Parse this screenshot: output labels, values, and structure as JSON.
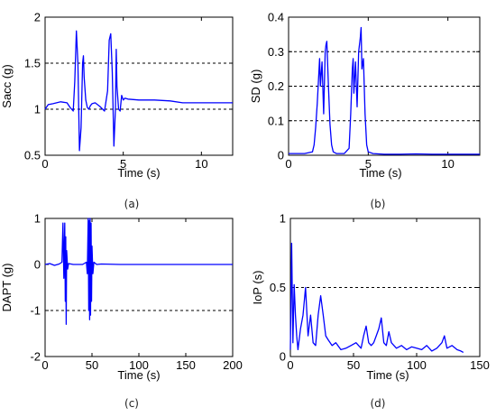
{
  "chart_data": [
    {
      "type": "line",
      "xlabel": "Time (s)",
      "ylabel": "Sacc (g)",
      "caption": "(a)",
      "xlim": [
        0,
        12
      ],
      "ylim": [
        0.5,
        2
      ],
      "xticks": [
        0,
        5,
        10
      ],
      "yticks": [
        0.5,
        1,
        1.5,
        2
      ],
      "reference_lines": [
        1,
        1.5
      ],
      "color": "#0000ff",
      "grid": false,
      "x": [
        0,
        0.2,
        0.5,
        1.0,
        1.4,
        1.6,
        1.8,
        1.9,
        2.0,
        2.1,
        2.2,
        2.3,
        2.4,
        2.45,
        2.5,
        2.6,
        2.7,
        2.8,
        2.9,
        3.0,
        3.2,
        3.5,
        3.8,
        4.0,
        4.1,
        4.2,
        4.3,
        4.4,
        4.5,
        4.55,
        4.6,
        4.7,
        4.8,
        4.9,
        5.0,
        5.1,
        5.3,
        6.0,
        7.0,
        8.0,
        8.8,
        10.0,
        12.0
      ],
      "y": [
        1.0,
        1.05,
        1.06,
        1.08,
        1.07,
        1.02,
        0.98,
        1.3,
        1.85,
        1.5,
        0.55,
        0.8,
        1.5,
        1.58,
        1.35,
        1.1,
        1.02,
        1.0,
        1.04,
        1.06,
        1.07,
        1.03,
        0.98,
        1.2,
        1.75,
        1.82,
        1.4,
        0.6,
        1.0,
        1.65,
        1.25,
        1.0,
        0.98,
        1.15,
        1.1,
        1.12,
        1.11,
        1.1,
        1.1,
        1.09,
        1.07,
        1.07,
        1.07
      ]
    },
    {
      "type": "line",
      "xlabel": "Time (s)",
      "ylabel": "SD (g)",
      "caption": "(b)",
      "xlim": [
        0,
        12
      ],
      "ylim": [
        0,
        0.4
      ],
      "xticks": [
        0,
        5,
        10
      ],
      "yticks": [
        0,
        0.1,
        0.2,
        0.3,
        0.4
      ],
      "reference_lines": [
        0.1,
        0.2,
        0.3
      ],
      "color": "#0000ff",
      "grid": false,
      "x": [
        0,
        0.5,
        1.0,
        1.5,
        1.6,
        1.7,
        1.8,
        1.9,
        1.95,
        2.0,
        2.1,
        2.2,
        2.3,
        2.35,
        2.4,
        2.5,
        2.6,
        2.7,
        2.8,
        3.0,
        3.5,
        3.8,
        3.9,
        4.0,
        4.05,
        4.1,
        4.2,
        4.3,
        4.4,
        4.5,
        4.55,
        4.6,
        4.7,
        4.8,
        4.9,
        5.0,
        5.3,
        6.0,
        7.0,
        8.0,
        9.0,
        10.0,
        12.0
      ],
      "y": [
        0.005,
        0.005,
        0.005,
        0.01,
        0.03,
        0.08,
        0.15,
        0.24,
        0.28,
        0.2,
        0.27,
        0.12,
        0.3,
        0.32,
        0.33,
        0.2,
        0.09,
        0.03,
        0.01,
        0.005,
        0.005,
        0.02,
        0.12,
        0.25,
        0.28,
        0.18,
        0.27,
        0.14,
        0.3,
        0.34,
        0.37,
        0.25,
        0.28,
        0.12,
        0.03,
        0.01,
        0.005,
        0.003,
        0.003,
        0.004,
        0.003,
        0.003,
        0.003
      ]
    },
    {
      "type": "line",
      "xlabel": "Time (s)",
      "ylabel": "DAPT (g)",
      "caption": "(c)",
      "xlim": [
        0,
        200
      ],
      "ylim": [
        -2,
        1
      ],
      "xticks": [
        0,
        50,
        100,
        150,
        200
      ],
      "yticks": [
        -2,
        -1,
        0,
        1
      ],
      "reference_lines": [
        -1
      ],
      "color": "#0000ff",
      "grid": false,
      "x": [
        0,
        5,
        10,
        15,
        18,
        19,
        20,
        21,
        21.5,
        22,
        22.5,
        23,
        24,
        25,
        30,
        40,
        44,
        45,
        46,
        46.5,
        47,
        47.5,
        48,
        48.5,
        49,
        49.5,
        50,
        51,
        52,
        55,
        60,
        80,
        100,
        150,
        200
      ],
      "y": [
        0,
        0.02,
        -0.02,
        0.01,
        0.05,
        0.9,
        -0.3,
        0.9,
        -0.8,
        0.6,
        -1.3,
        0.3,
        -0.1,
        0.02,
        0,
        0,
        0.05,
        -0.2,
        1.0,
        -1.0,
        0.95,
        -1.2,
        1.0,
        -1.1,
        0.9,
        -0.8,
        0.4,
        -0.2,
        0.05,
        0,
        0.01,
        0,
        0,
        0,
        0
      ]
    },
    {
      "type": "line",
      "xlabel": "Time (s)",
      "ylabel": "IoP (s)",
      "caption": "(d)",
      "xlim": [
        0,
        150
      ],
      "ylim": [
        0,
        1
      ],
      "xticks": [
        0,
        50,
        100,
        150
      ],
      "yticks": [
        0,
        0.5,
        1
      ],
      "reference_lines": [
        0.5
      ],
      "color": "#0000ff",
      "grid": false,
      "x": [
        0,
        1,
        2,
        3,
        4,
        5,
        6,
        8,
        10,
        12,
        14,
        16,
        18,
        20,
        22,
        24,
        26,
        28,
        30,
        33,
        36,
        40,
        44,
        48,
        52,
        56,
        58,
        60,
        62,
        64,
        66,
        68,
        70,
        72,
        74,
        76,
        78,
        80,
        84,
        88,
        92,
        96,
        100,
        104,
        108,
        112,
        116,
        120,
        122,
        124,
        128,
        132,
        135,
        137
      ],
      "y": [
        0.05,
        0.82,
        0.1,
        0.52,
        0.3,
        0.15,
        0.05,
        0.2,
        0.3,
        0.5,
        0.15,
        0.3,
        0.1,
        0.08,
        0.3,
        0.44,
        0.3,
        0.15,
        0.12,
        0.08,
        0.1,
        0.05,
        0.06,
        0.08,
        0.1,
        0.06,
        0.15,
        0.22,
        0.1,
        0.08,
        0.1,
        0.15,
        0.2,
        0.28,
        0.1,
        0.08,
        0.18,
        0.1,
        0.06,
        0.08,
        0.05,
        0.07,
        0.06,
        0.05,
        0.08,
        0.04,
        0.06,
        0.1,
        0.15,
        0.06,
        0.08,
        0.05,
        0.04,
        0.03
      ]
    }
  ]
}
